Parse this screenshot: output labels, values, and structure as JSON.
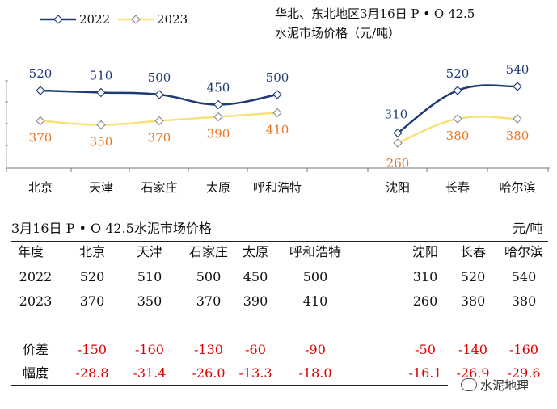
{
  "chart_data": {
    "type": "line",
    "title": "华北、东北地区3月16日  P • O 42.5",
    "subtitle": "水泥市场价格（元/吨）",
    "categories": [
      "北京",
      "天津",
      "石家庄",
      "太原",
      "呼和浩特",
      "沈阳",
      "长春",
      "哈尔滨"
    ],
    "series": [
      {
        "name": "2022",
        "values": [
          520,
          510,
          500,
          450,
          500,
          310,
          520,
          540
        ],
        "color": "#1f3b73"
      },
      {
        "name": "2023",
        "values": [
          370,
          350,
          370,
          390,
          410,
          260,
          380,
          380
        ],
        "color": "#f5e27a"
      }
    ],
    "label_colors": {
      "2022": "#1f3b73",
      "2023": "#e87722"
    },
    "legend": "top-left",
    "grid": false
  },
  "table": {
    "title": "3月16日  P • O 42.5水泥市场价格",
    "unit": "元/吨",
    "header": "年度",
    "columns": [
      "北京",
      "天津",
      "石家庄",
      "太原",
      "呼和浩特",
      "沈阳",
      "长春",
      "哈尔滨"
    ],
    "rows": [
      {
        "label": "2022",
        "values": [
          "520",
          "510",
          "500",
          "450",
          "500",
          "310",
          "520",
          "540"
        ],
        "negative": false
      },
      {
        "label": "2023",
        "values": [
          "370",
          "350",
          "370",
          "390",
          "410",
          "260",
          "380",
          "380"
        ],
        "negative": false
      },
      {
        "label": "价差",
        "values": [
          "-150",
          "-160",
          "-130",
          "-60",
          "-90",
          "-50",
          "-140",
          "-160"
        ],
        "negative": true
      },
      {
        "label": "幅度",
        "values": [
          "-28.8",
          "-31.4",
          "-26.0",
          "-13.3",
          "-18.0",
          "-16.1",
          "-26.9",
          "-29.6"
        ],
        "negative": true
      }
    ]
  },
  "watermark": "水泥地理"
}
